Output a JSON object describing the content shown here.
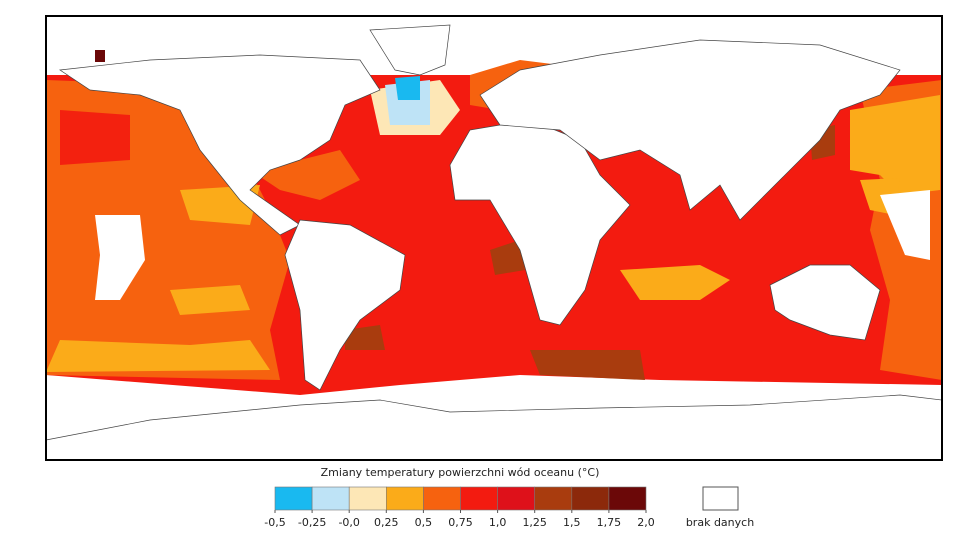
{
  "legend": {
    "title": "Zmiany temperatury powierzchni wód oceanu (°C)",
    "ticks": [
      {
        "value": -0.5,
        "label": "-0,5"
      },
      {
        "value": -0.25,
        "label": "-0,25"
      },
      {
        "value": 0,
        "label": "-0,0"
      },
      {
        "value": 0.25,
        "label": "0,25"
      },
      {
        "value": 0.5,
        "label": "0,5"
      },
      {
        "value": 0.75,
        "label": "0,75"
      },
      {
        "value": 1,
        "label": "1,0"
      },
      {
        "value": 1.25,
        "label": "1,25"
      },
      {
        "value": 1.5,
        "label": "1,5"
      },
      {
        "value": 1.75,
        "label": "1,75"
      },
      {
        "value": 2,
        "label": "2,0"
      }
    ],
    "colors": [
      "#19b9f0",
      "#bee3f6",
      "#fde7b6",
      "#fbab19",
      "#f6620f",
      "#f31b10",
      "#de111a",
      "#a93c0e",
      "#8c290b",
      "#6b0808"
    ],
    "no_data_label": "brak danych"
  }
}
